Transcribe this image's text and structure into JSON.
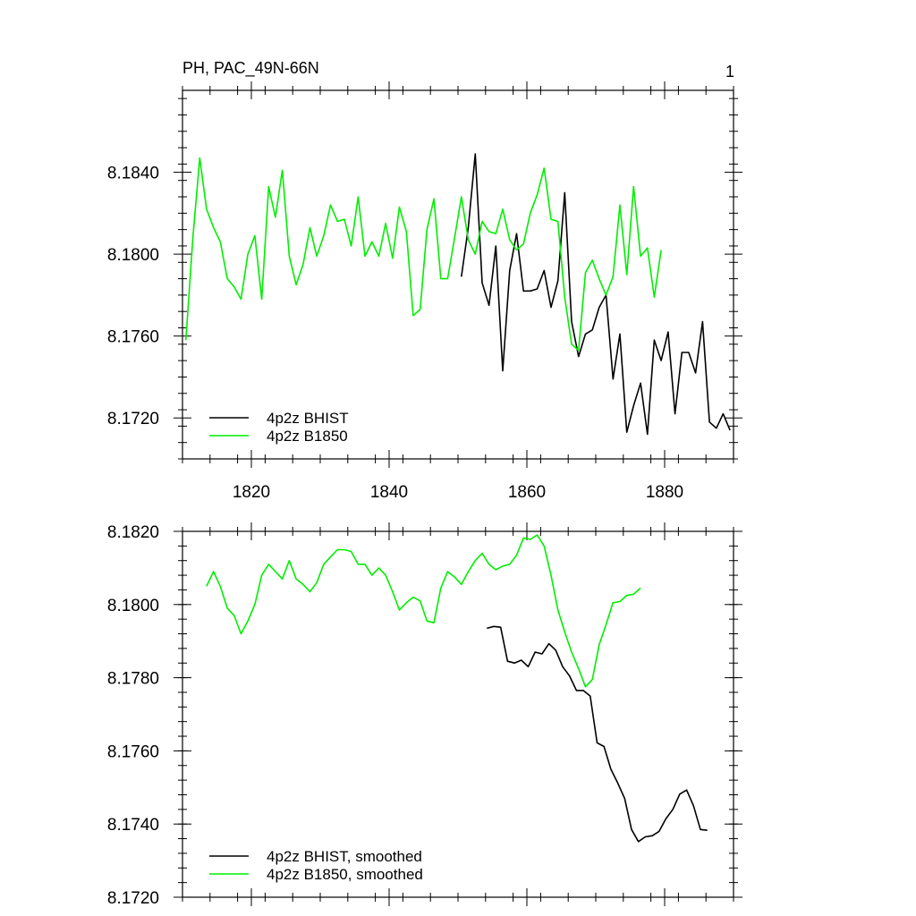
{
  "header": {
    "title": "PH, PAC_49N-66N",
    "panel_number": "1"
  },
  "colors": {
    "bhist": "#000000",
    "b1850": "#00ee00"
  },
  "chart_data": [
    {
      "type": "line",
      "xlim": [
        1810,
        1890
      ],
      "ylim": [
        8.17,
        8.188
      ],
      "x_ticks": [
        1820,
        1840,
        1860,
        1880
      ],
      "x_tick_labels": [
        "1820",
        "1840",
        "1860",
        "1880"
      ],
      "y_ticks": [
        8.172,
        8.176,
        8.18,
        8.184
      ],
      "y_tick_labels": [
        "8.1720",
        "8.1760",
        "8.1800",
        "8.1840"
      ],
      "legend": {
        "position": "bottom-left"
      },
      "grid": false,
      "series": [
        {
          "name": "4p2z BHIST",
          "color": "#000000",
          "x": [
            1850.5,
            1851.5,
            1852.5,
            1853.5,
            1854.5,
            1855.5,
            1856.5,
            1857.5,
            1858.5,
            1859.5,
            1860.5,
            1861.5,
            1862.5,
            1863.5,
            1864.5,
            1865.5,
            1866.5,
            1867.5,
            1868.5,
            1869.5,
            1870.5,
            1871.5,
            1872.5,
            1873.5,
            1874.5,
            1875.5,
            1876.5,
            1877.5,
            1878.5,
            1879.5,
            1880.5,
            1881.5,
            1882.5,
            1883.5,
            1884.5,
            1885.5,
            1886.5,
            1887.5,
            1888.5,
            1889.5
          ],
          "y": [
            8.1789,
            8.1813,
            8.1849,
            8.1786,
            8.1775,
            8.1804,
            8.1743,
            8.1792,
            8.181,
            8.1782,
            8.1782,
            8.1783,
            8.1792,
            8.1774,
            8.1787,
            8.183,
            8.1767,
            8.175,
            8.1761,
            8.1763,
            8.1774,
            8.178,
            8.1739,
            8.1761,
            8.1713,
            8.1726,
            8.1737,
            8.1712,
            8.1758,
            8.1748,
            8.1762,
            8.1722,
            8.1752,
            8.1752,
            8.1742,
            8.1767,
            8.1718,
            8.1715,
            8.1722,
            8.1714
          ]
        },
        {
          "name": "4p2z B1850",
          "color": "#00ee00",
          "x": [
            1810.5,
            1811.5,
            1812.5,
            1813.5,
            1814.5,
            1815.5,
            1816.5,
            1817.5,
            1818.5,
            1819.5,
            1820.5,
            1821.5,
            1822.5,
            1823.5,
            1824.5,
            1825.5,
            1826.5,
            1827.5,
            1828.5,
            1829.5,
            1830.5,
            1831.5,
            1832.5,
            1833.5,
            1834.5,
            1835.5,
            1836.5,
            1837.5,
            1838.5,
            1839.5,
            1840.5,
            1841.5,
            1842.5,
            1843.5,
            1844.5,
            1845.5,
            1846.5,
            1847.5,
            1848.5,
            1849.5,
            1850.5,
            1851.5,
            1852.5,
            1853.5,
            1854.5,
            1855.5,
            1856.5,
            1857.5,
            1858.5,
            1859.5,
            1860.5,
            1861.5,
            1862.5,
            1863.5,
            1864.5,
            1865.5,
            1866.5,
            1867.5,
            1868.5,
            1869.5,
            1870.5,
            1871.5,
            1872.5,
            1873.5,
            1874.5,
            1875.5,
            1876.5,
            1877.5,
            1878.5,
            1879.5
          ],
          "y": [
            8.1758,
            8.1808,
            8.1847,
            8.1822,
            8.1813,
            8.1806,
            8.1788,
            8.1784,
            8.1778,
            8.18,
            8.1809,
            8.1778,
            8.1833,
            8.1818,
            8.1841,
            8.1799,
            8.1785,
            8.1795,
            8.1813,
            8.1799,
            8.1809,
            8.1824,
            8.1816,
            8.1817,
            8.1804,
            8.1828,
            8.1799,
            8.1806,
            8.1799,
            8.1815,
            8.1798,
            8.1823,
            8.1811,
            8.177,
            8.1773,
            8.1812,
            8.1827,
            8.1788,
            8.1788,
            8.1808,
            8.1828,
            8.1807,
            8.18,
            8.1816,
            8.1811,
            8.181,
            8.1822,
            8.1807,
            8.1802,
            8.1805,
            8.182,
            8.1829,
            8.1842,
            8.1817,
            8.1816,
            8.1779,
            8.1756,
            8.1753,
            8.1791,
            8.1797,
            8.1788,
            8.178,
            8.1789,
            8.1824,
            8.179,
            8.1833,
            8.1799,
            8.1803,
            8.1779,
            8.1802
          ]
        }
      ]
    },
    {
      "type": "line",
      "xlim": [
        1810,
        1890
      ],
      "ylim": [
        8.172,
        8.182
      ],
      "x_ticks": [
        1820,
        1840,
        1860,
        1880
      ],
      "x_tick_labels": [],
      "y_ticks": [
        8.172,
        8.174,
        8.176,
        8.178,
        8.18,
        8.182
      ],
      "y_tick_labels": [
        "8.1720",
        "8.1740",
        "8.1760",
        "8.1780",
        "8.1800",
        "8.1820"
      ],
      "legend": {
        "position": "bottom-left"
      },
      "grid": false,
      "series": [
        {
          "name": "4p2z BHIST, smoothed",
          "color": "#000000",
          "x": [
            1854.2,
            1855.2,
            1856.2,
            1857.2,
            1858.2,
            1859.2,
            1860.2,
            1861.2,
            1862.2,
            1863.2,
            1864.2,
            1865.2,
            1866.2,
            1867.2,
            1868.2,
            1869.2,
            1870.2,
            1871.2,
            1872.2,
            1873.2,
            1874.2,
            1875.2,
            1876.2,
            1877.2,
            1878.2,
            1879.2,
            1880.2,
            1881.2,
            1882.2,
            1883.2,
            1884.2,
            1885.2,
            1886.2
          ],
          "y": [
            8.17935,
            8.1794,
            8.17938,
            8.17845,
            8.1784,
            8.17848,
            8.1783,
            8.1787,
            8.17865,
            8.17893,
            8.17875,
            8.1783,
            8.17805,
            8.17765,
            8.17765,
            8.1775,
            8.17622,
            8.17612,
            8.1755,
            8.17512,
            8.1747,
            8.17385,
            8.17352,
            8.17365,
            8.17368,
            8.1738,
            8.17415,
            8.1744,
            8.17482,
            8.17493,
            8.1745,
            8.17385,
            8.17383
          ]
        },
        {
          "name": "4p2z B1850, smoothed",
          "color": "#00ee00",
          "x": [
            1813.5,
            1814.5,
            1815.5,
            1816.5,
            1817.5,
            1818.5,
            1819.5,
            1820.5,
            1821.5,
            1822.5,
            1823.5,
            1824.5,
            1825.5,
            1826.5,
            1827.5,
            1828.5,
            1829.5,
            1830.5,
            1831.5,
            1832.5,
            1833.5,
            1834.5,
            1835.5,
            1836.5,
            1837.5,
            1838.5,
            1839.5,
            1840.5,
            1841.5,
            1842.5,
            1843.5,
            1844.5,
            1845.5,
            1846.5,
            1847.5,
            1848.5,
            1849.5,
            1850.5,
            1851.5,
            1852.5,
            1853.5,
            1854.5,
            1855.5,
            1856.5,
            1857.5,
            1858.5,
            1859.5,
            1860.5,
            1861.5,
            1862.5,
            1863.5,
            1864.5,
            1865.5,
            1866.5,
            1867.5,
            1868.5,
            1869.5,
            1870.5,
            1871.5,
            1872.5,
            1873.5,
            1874.5,
            1875.5,
            1876.5
          ],
          "y": [
            8.1805,
            8.1809,
            8.1805,
            8.1799,
            8.1797,
            8.1792,
            8.17955,
            8.18,
            8.1808,
            8.1811,
            8.1809,
            8.1807,
            8.1812,
            8.1807,
            8.18055,
            8.18035,
            8.1806,
            8.1811,
            8.1813,
            8.1815,
            8.1815,
            8.18145,
            8.1811,
            8.1811,
            8.1808,
            8.181,
            8.1808,
            8.18035,
            8.17985,
            8.18005,
            8.1802,
            8.1801,
            8.17955,
            8.1795,
            8.18045,
            8.1809,
            8.18075,
            8.18055,
            8.1809,
            8.1812,
            8.1814,
            8.1811,
            8.18095,
            8.18105,
            8.1811,
            8.18135,
            8.18182,
            8.18178,
            8.1819,
            8.1816,
            8.1808,
            8.17985,
            8.17925,
            8.1787,
            8.17825,
            8.17775,
            8.17795,
            8.1789,
            8.17945,
            8.18005,
            8.18008,
            8.18025,
            8.18028,
            8.18045
          ]
        }
      ]
    }
  ]
}
